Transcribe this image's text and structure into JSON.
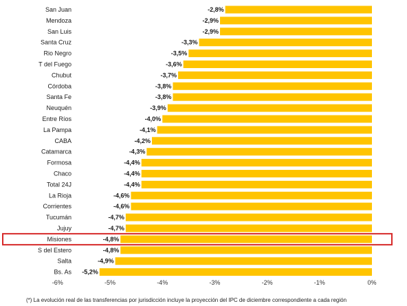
{
  "chart_data": {
    "type": "bar",
    "orientation": "horizontal",
    "categories": [
      "San Juan",
      "Mendoza",
      "San Luis",
      "Santa Cruz",
      "Rio Negro",
      "T del Fuego",
      "Chubut",
      "Córdoba",
      "Santa Fe",
      "Neuquén",
      "Entre Ríos",
      "La Pampa",
      "CABA",
      "Catamarca",
      "Formosa",
      "Chaco",
      "Total 24J",
      "La Rioja",
      "Corrientes",
      "Tucumán",
      "Jujuy",
      "Misiones",
      "S del Estero",
      "Salta",
      "Bs. As"
    ],
    "values": [
      -2.8,
      -2.9,
      -2.9,
      -3.3,
      -3.5,
      -3.6,
      -3.7,
      -3.8,
      -3.8,
      -3.9,
      -4.0,
      -4.1,
      -4.2,
      -4.3,
      -4.4,
      -4.4,
      -4.4,
      -4.6,
      -4.6,
      -4.7,
      -4.7,
      -4.8,
      -4.8,
      -4.9,
      -5.2
    ],
    "value_labels": [
      "-2,8%",
      "-2,9%",
      "-2,9%",
      "-3,3%",
      "-3,5%",
      "-3,6%",
      "-3,7%",
      "-3,8%",
      "-3,8%",
      "-3,9%",
      "-4,0%",
      "-4,1%",
      "-4,2%",
      "-4,3%",
      "-4,4%",
      "-4,4%",
      "-4,4%",
      "-4,6%",
      "-4,6%",
      "-4,7%",
      "-4,7%",
      "-4,8%",
      "-4,8%",
      "-4,9%",
      "-5,2%"
    ],
    "xlim": [
      -6,
      0
    ],
    "x_ticks": [
      -6,
      -5,
      -4,
      -3,
      -2,
      -1,
      0
    ],
    "x_tick_labels": [
      "-6%",
      "-5%",
      "-4%",
      "-3%",
      "-2%",
      "-1%",
      "0%"
    ],
    "bar_color": "#FFC400",
    "highlight": {
      "category": "Misiones",
      "color": "#D62828"
    },
    "grid": false
  },
  "footnote": "(*) La evolución real de las transferencias por jurisdicción incluye la proyección del IPC de diciembre correspondiente a cada región"
}
